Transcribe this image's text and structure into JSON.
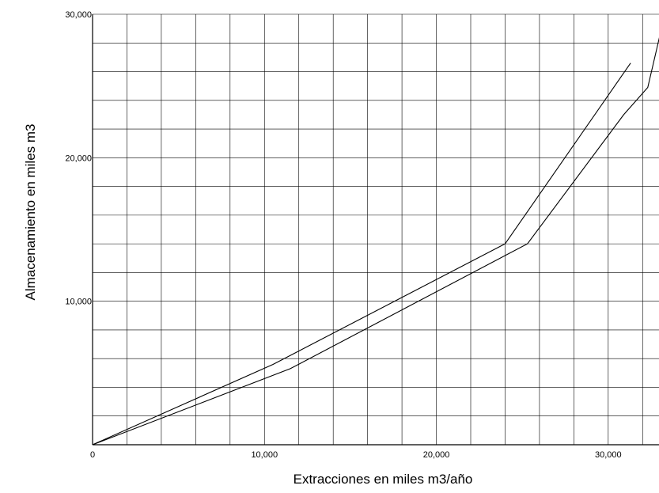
{
  "chart_data": {
    "type": "line",
    "xlabel": "Extracciones en miles m3/año",
    "ylabel": "Almacenamiento en miles m3",
    "xlim": [
      0,
      33000
    ],
    "ylim": [
      0,
      30000
    ],
    "x_ticks": [
      {
        "value": 0,
        "label": "0"
      },
      {
        "value": 10000,
        "label": "10,000"
      },
      {
        "value": 20000,
        "label": "20,000"
      },
      {
        "value": 30000,
        "label": "30,000"
      }
    ],
    "y_ticks": [
      {
        "value": 10000,
        "label": "10,000"
      },
      {
        "value": 20000,
        "label": "20,000"
      },
      {
        "value": 30000,
        "label": "30,000"
      }
    ],
    "x_grid_step": 2000,
    "y_grid_step": 2000,
    "grid": true,
    "legend": "none",
    "series": [
      {
        "x": [
          0,
          10500,
          24000,
          31300
        ],
        "y": [
          0,
          5600,
          14000,
          26600
        ]
      },
      {
        "x": [
          0,
          11500,
          25300,
          30900,
          32300,
          33000
        ],
        "y": [
          0,
          5300,
          14000,
          23000,
          24900,
          28500
        ]
      }
    ],
    "line_color": "#000000",
    "grid_color": "#000000"
  }
}
